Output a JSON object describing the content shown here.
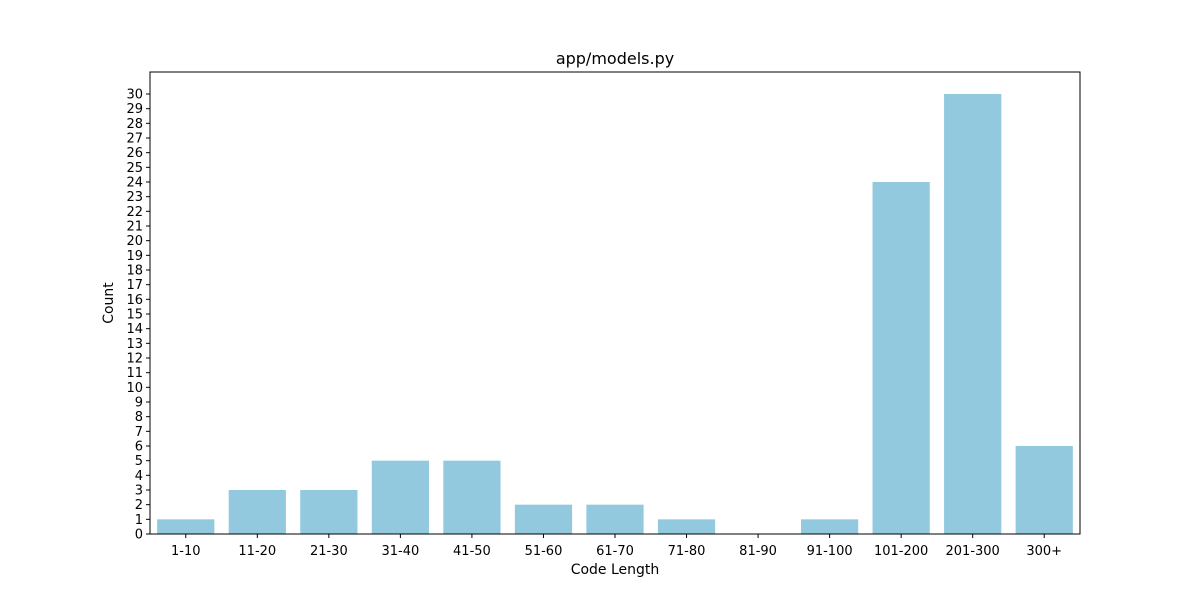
{
  "chart_data": {
    "type": "bar",
    "title": "app/models.py",
    "xlabel": "Code Length",
    "ylabel": "Count",
    "categories": [
      "1-10",
      "11-20",
      "21-30",
      "31-40",
      "41-50",
      "51-60",
      "61-70",
      "71-80",
      "81-90",
      "91-100",
      "101-200",
      "201-300",
      "300+"
    ],
    "values": [
      1,
      3,
      3,
      5,
      5,
      2,
      2,
      1,
      0,
      1,
      24,
      30,
      6
    ],
    "yticks": [
      0,
      1,
      2,
      3,
      4,
      5,
      6,
      7,
      8,
      9,
      10,
      11,
      12,
      13,
      14,
      15,
      16,
      17,
      18,
      19,
      20,
      21,
      22,
      23,
      24,
      25,
      26,
      27,
      28,
      29,
      30
    ],
    "ylim": [
      0,
      31.5
    ],
    "grid": false,
    "bar_color": "#92c9df",
    "axis_color": "#000000"
  }
}
